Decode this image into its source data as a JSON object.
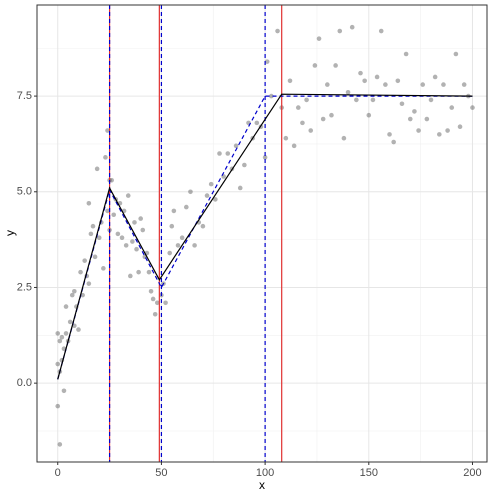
{
  "chart_data": {
    "type": "scatter",
    "xlabel": "x",
    "ylabel": "y",
    "xlim": [
      -10,
      207
    ],
    "ylim": [
      -2.06,
      9.88
    ],
    "xticks": [
      0,
      50,
      100,
      150,
      200
    ],
    "yticks": [
      {
        "value": 0,
        "label": "0.0"
      },
      2.5,
      {
        "value": 5,
        "label": "5.0"
      },
      7.5
    ],
    "x_minor_ticks": [
      25,
      75,
      125,
      175
    ],
    "y_minor_ticks": [
      -1.25,
      1.25,
      3.75,
      6.25,
      8.75
    ],
    "grid": true,
    "points": {
      "color": "#555555",
      "x": [
        0,
        0,
        0,
        1,
        1,
        1,
        2,
        2,
        3,
        3,
        4,
        4,
        5,
        6,
        7,
        8,
        8,
        9,
        10,
        11,
        12,
        13,
        14,
        15,
        15,
        16,
        17,
        18,
        19,
        20,
        21,
        22,
        23,
        24,
        24,
        25,
        25,
        26,
        27,
        28,
        29,
        30,
        31,
        32,
        33,
        34,
        35,
        36,
        37,
        38,
        39,
        40,
        41,
        42,
        43,
        44,
        45,
        46,
        47,
        48,
        50,
        51,
        52,
        54,
        55,
        56,
        58,
        60,
        62,
        64,
        66,
        68,
        70,
        72,
        74,
        76,
        78,
        80,
        82,
        84,
        86,
        88,
        90,
        92,
        94,
        96,
        98,
        100,
        101,
        103,
        106,
        108,
        110,
        112,
        114,
        116,
        118,
        120,
        122,
        124,
        126,
        128,
        130,
        132,
        134,
        136,
        138,
        140,
        142,
        144,
        146,
        148,
        150,
        152,
        154,
        156,
        158,
        160,
        162,
        164,
        166,
        168,
        170,
        172,
        174,
        176,
        178,
        180,
        182,
        184,
        186,
        188,
        190,
        192,
        194,
        196,
        198,
        200
      ],
      "values": [
        1.3,
        -0.6,
        0.5,
        1.1,
        -1.6,
        0.3,
        1.2,
        0.6,
        0.9,
        -0.2,
        1.3,
        2.0,
        1.1,
        1.6,
        2.3,
        1.5,
        2.4,
        2.0,
        1.4,
        2.9,
        2.3,
        3.2,
        2.8,
        4.7,
        2.6,
        3.9,
        4.1,
        3.3,
        5.6,
        3.8,
        4.2,
        3.0,
        5.9,
        6.6,
        4.5,
        5.3,
        4.0,
        5.3,
        4.4,
        4.8,
        3.9,
        4.7,
        3.8,
        4.5,
        3.6,
        4.9,
        2.8,
        3.7,
        4.2,
        3.5,
        2.9,
        4.3,
        4.0,
        3.3,
        3.4,
        2.9,
        2.4,
        2.2,
        1.8,
        2.1,
        2.3,
        2.6,
        2.1,
        3.4,
        4.1,
        4.5,
        3.6,
        3.8,
        4.6,
        5.0,
        3.6,
        4.2,
        4.1,
        4.9,
        5.2,
        4.8,
        6.0,
        5.4,
        6.0,
        5.6,
        6.2,
        5.1,
        5.7,
        6.8,
        6.4,
        6.8,
        6.7,
        5.9,
        8.4,
        7.5,
        9.2,
        7.2,
        6.4,
        7.9,
        6.2,
        7.2,
        6.8,
        7.4,
        6.6,
        8.3,
        9.0,
        6.9,
        7.8,
        7.0,
        8.3,
        9.2,
        6.4,
        7.6,
        9.3,
        7.4,
        8.1,
        7.9,
        7.0,
        7.4,
        8.0,
        9.2,
        7.8,
        6.5,
        6.3,
        7.9,
        7.3,
        8.6,
        6.9,
        7.1,
        6.6,
        7.8,
        6.9,
        7.4,
        8.0,
        6.5,
        7.8,
        6.6,
        7.2,
        8.6,
        6.7,
        7.8,
        7.5,
        7.2
      ]
    },
    "lines": [
      {
        "color": "#0000cc",
        "dashed": true,
        "x": [
          0,
          25,
          50,
          100,
          200
        ],
        "values": [
          0.1,
          5.05,
          2.5,
          7.5,
          7.5
        ]
      },
      {
        "color": "#000000",
        "dashed": false,
        "x": [
          0,
          25,
          49,
          108,
          200
        ],
        "values": [
          0.1,
          5.1,
          2.7,
          7.55,
          7.5
        ]
      }
    ],
    "vlines": [
      {
        "color": "#e03030",
        "dashed": false,
        "values": [
          25,
          49,
          108
        ]
      },
      {
        "color": "#0000cc",
        "dashed": true,
        "values": [
          25,
          50,
          100
        ]
      }
    ]
  }
}
